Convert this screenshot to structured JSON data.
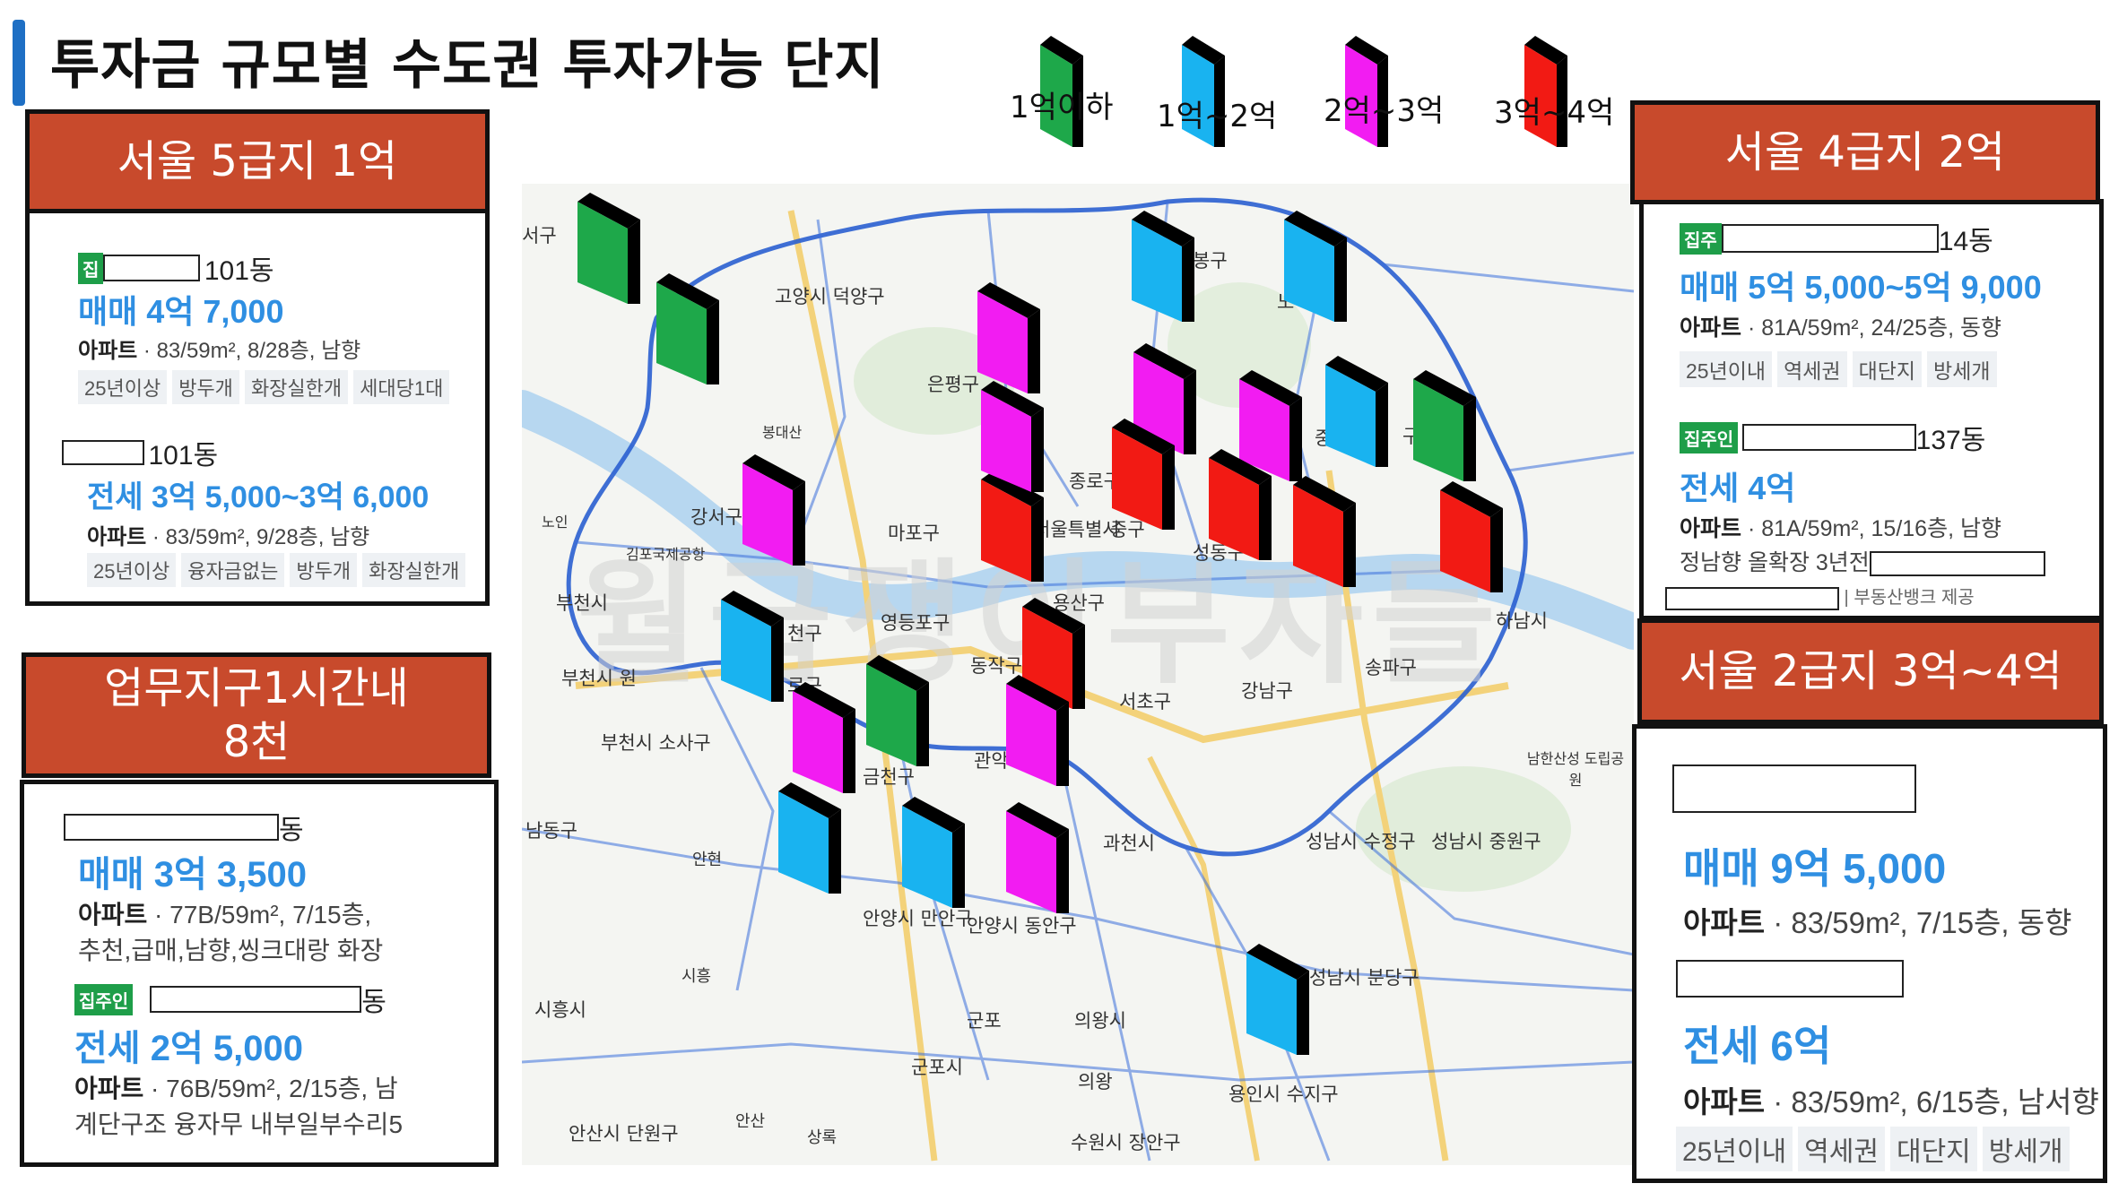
{
  "title": "투자금 규모별  수도권 투자가능 단지",
  "legend": [
    {
      "label": "1억이하",
      "color": "#1ea84a"
    },
    {
      "label": "1억~2억",
      "color": "#19b3f0"
    },
    {
      "label": "2억~3억",
      "color": "#f21cf2"
    },
    {
      "label": "3억~4억",
      "color": "#f21a14"
    }
  ],
  "panels": {
    "seoul5": {
      "header": "서울 5급지 1억",
      "listings": [
        {
          "badge": "집",
          "dong": "101동",
          "price": "매매 4억 7,000",
          "spec_type": "아파트",
          "spec": " · 83/59m², 8/28층, 남향",
          "tags": [
            "25년이상",
            "방두개",
            "화장실한개",
            "세대당1대"
          ]
        },
        {
          "dong": "101동",
          "price": "전세 3억 5,000~3억 6,000",
          "spec_type": "아파트",
          "spec": " · 83/59m², 9/28층, 남향",
          "tags": [
            "25년이상",
            "융자금없는",
            "방두개",
            "화장실한개"
          ]
        }
      ]
    },
    "worktime": {
      "header_line1": "업무지구1시간내",
      "header_line2": "8천",
      "listings": [
        {
          "dong": "동",
          "price": "매매 3억 3,500",
          "spec_type": "아파트",
          "spec": " · 77B/59m², 7/15층,",
          "spec2": "추천,급매,남향,씽크대랑 화장"
        },
        {
          "badge": "집주인",
          "dong": "동",
          "price": "전세 2억 5,000",
          "spec_type": "아파트",
          "spec": " · 76B/59m², 2/15층, 남",
          "spec2": "계단구조 융자무 내부일부수리5"
        }
      ]
    },
    "seoul4": {
      "header": "서울 4급지 2억",
      "listings": [
        {
          "badge": "집주",
          "dong": "14동",
          "price": "매매 5억 5,000~5억 9,000",
          "spec_type": "아파트",
          "spec": " · 81A/59m², 24/25층, 동향",
          "tags": [
            "25년이내",
            "역세권",
            "대단지",
            "방세개"
          ]
        },
        {
          "badge": "집주인",
          "dong": "137동",
          "price": "전세 4억",
          "spec_type": "아파트",
          "spec": " · 81A/59m², 15/16층, 남향",
          "spec2": "정남향 올확장 3년전",
          "source": "부동산뱅크 제공"
        }
      ]
    },
    "seoul2": {
      "header": "서울 2급지 3억~4억",
      "listings": [
        {
          "price": "매매 9억 5,000",
          "spec_type": "아파트",
          "spec": " · 83/59m², 7/15층, 동향"
        },
        {
          "price": "전세 6억",
          "spec_type": "아파트",
          "spec": " · 83/59m², 6/15층, 남서향",
          "tags": [
            "25년이내",
            "역세권",
            "대단지",
            "방세개"
          ]
        }
      ]
    }
  },
  "map": {
    "watermark": "월급쟁이부자들",
    "districts": [
      "서구",
      "고양시 덕양구",
      "은평구",
      "봉구",
      "노",
      "강서구",
      "마포구",
      "종로구",
      "중",
      "구",
      "서울특별시",
      "중구",
      "성동구",
      "부천시",
      "부천시 원",
      "천구",
      "로구",
      "영등포구",
      "동작구",
      "용산구",
      "하남시",
      "송파구",
      "강남구",
      "서초구",
      "부천시 소사구",
      "관악",
      "금천구",
      "남동구",
      "과천시",
      "성남시 수정구",
      "성남시 중원구",
      "안양시 만안구",
      "안양시 동안구",
      "시흥시",
      "군포",
      "의왕시",
      "성남시 분당구",
      "군포시",
      "의왕",
      "용인시 수지구",
      "안산시 단원구",
      "수원시 장안구",
      "김포국제공항",
      "봉대산",
      "노인",
      "시흥",
      "안현",
      "상록",
      "안산",
      "남한산성 도립공원"
    ],
    "markers": [
      {
        "tier": 0
      },
      {
        "tier": 0
      },
      {
        "tier": 2
      },
      {
        "tier": 1
      },
      {
        "tier": 1
      },
      {
        "tier": 2
      },
      {
        "tier": 2
      },
      {
        "tier": 1
      },
      {
        "tier": 0
      },
      {
        "tier": 2
      },
      {
        "tier": 3
      },
      {
        "tier": 3
      },
      {
        "tier": 2
      },
      {
        "tier": 3
      },
      {
        "tier": 3
      },
      {
        "tier": 3
      },
      {
        "tier": 0
      },
      {
        "tier": 1
      },
      {
        "tier": 3
      },
      {
        "tier": 2
      },
      {
        "tier": 0
      },
      {
        "tier": 2
      },
      {
        "tier": 1
      },
      {
        "tier": 1
      },
      {
        "tier": 2
      },
      {
        "tier": 1
      }
    ]
  }
}
